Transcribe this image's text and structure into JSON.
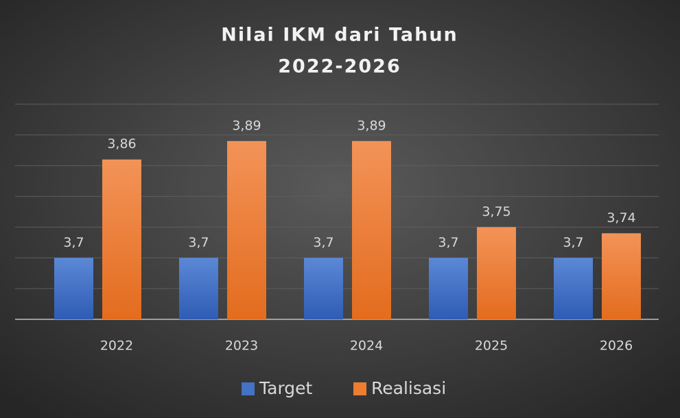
{
  "chart_data": {
    "type": "bar",
    "title": [
      "Nilai IKM dari Tahun",
      "2022-2026"
    ],
    "categories": [
      "2022",
      "2023",
      "2024",
      "2025",
      "2026"
    ],
    "series": [
      {
        "name": "Target",
        "color": "#4472c4",
        "values": [
          3.7,
          3.7,
          3.7,
          3.7,
          3.7
        ],
        "value_labels": [
          "3,7",
          "3,7",
          "3,7",
          "3,7",
          "3,7"
        ]
      },
      {
        "name": "Realisasi",
        "color": "#ed7d31",
        "values": [
          3.86,
          3.89,
          3.89,
          3.75,
          3.74
        ],
        "value_labels": [
          "3,86",
          "3,89",
          "3,89",
          "3,75",
          "3,74"
        ]
      }
    ],
    "ylim": [
      3.6,
      3.95
    ],
    "yticks": [
      3.6,
      3.65,
      3.7,
      3.75,
      3.8,
      3.85,
      3.9,
      3.95
    ],
    "grid": true,
    "legend": "bottom"
  }
}
